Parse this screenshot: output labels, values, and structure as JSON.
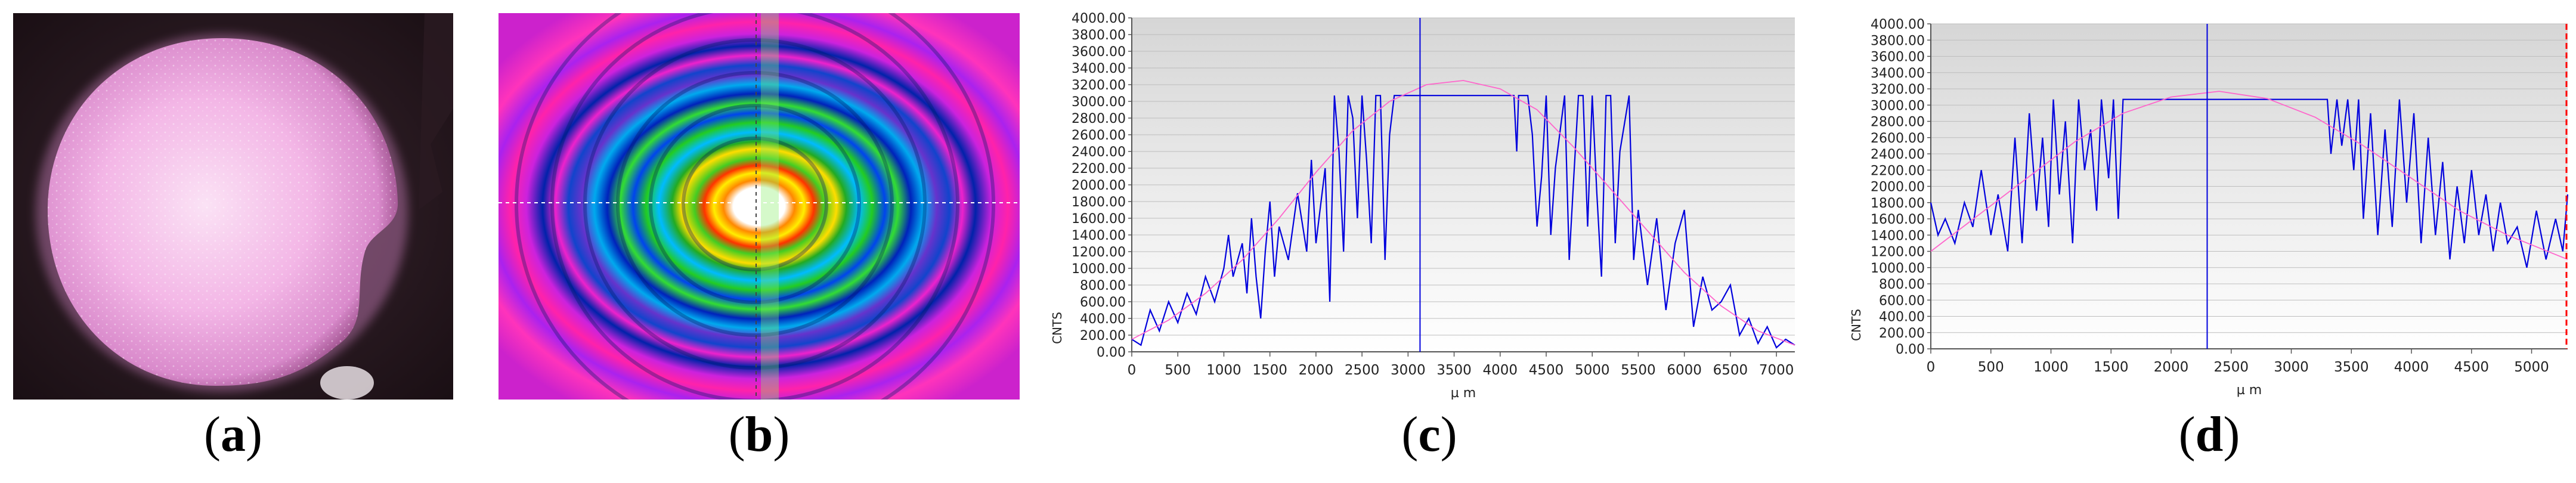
{
  "panels": {
    "a": {
      "label": "a"
    },
    "b": {
      "label": "b"
    },
    "c": {
      "label": "c"
    },
    "d": {
      "label": "d"
    }
  },
  "colors": {
    "profile": "#0000dd",
    "fit": "#ff66cc",
    "plot_bg_top": "#d6d6d6",
    "plot_bg_bottom": "#ffffff",
    "sphere": "#f3b6e6",
    "cursor_red": "#ff0000"
  },
  "chart_data": [
    {
      "id": "c",
      "type": "line",
      "ylabel": "CNTS",
      "xlabel": "µ m",
      "xlim": [
        0,
        7200
      ],
      "ylim": [
        0,
        4000
      ],
      "x_ticks": [
        0,
        500,
        1000,
        1500,
        2000,
        2500,
        3000,
        3500,
        4000,
        4500,
        5000,
        5500,
        6000,
        6500,
        7000
      ],
      "x_tick_labels": [
        "0",
        "500",
        "1000",
        "1500",
        "2000",
        "2500",
        "3000",
        "3500",
        "4000",
        "4500",
        "5000",
        "5500",
        "6000",
        "6500",
        "7000"
      ],
      "y_ticks": [
        0,
        200,
        400,
        600,
        800,
        1000,
        1200,
        1400,
        1600,
        1800,
        2000,
        2200,
        2400,
        2600,
        2800,
        3000,
        3200,
        3400,
        3600,
        3800,
        4000
      ],
      "y_tick_labels": [
        "0.00",
        "200.00",
        "400.00",
        "600.00",
        "800.00",
        "1000.00",
        "1200.00",
        "1400.00",
        "1600.00",
        "1800.00",
        "2000.00",
        "2200.00",
        "2400.00",
        "2600.00",
        "2800.00",
        "3000.00",
        "3200.00",
        "3400.00",
        "3600.00",
        "3800.00",
        "4000.00"
      ],
      "cursor_x": 3130,
      "saturation": 3070,
      "series": [
        {
          "values": [
            [
              0,
              150
            ],
            [
              100,
              80
            ],
            [
              200,
              500
            ],
            [
              300,
              250
            ],
            [
              400,
              600
            ],
            [
              500,
              350
            ],
            [
              600,
              700
            ],
            [
              700,
              450
            ],
            [
              800,
              900
            ],
            [
              900,
              600
            ],
            [
              1000,
              1000
            ],
            [
              1050,
              1400
            ],
            [
              1100,
              900
            ],
            [
              1200,
              1300
            ],
            [
              1250,
              700
            ],
            [
              1300,
              1600
            ],
            [
              1350,
              900
            ],
            [
              1400,
              400
            ],
            [
              1450,
              1200
            ],
            [
              1500,
              1800
            ],
            [
              1550,
              900
            ],
            [
              1600,
              1500
            ],
            [
              1700,
              1100
            ],
            [
              1800,
              1900
            ],
            [
              1900,
              1200
            ],
            [
              1950,
              2300
            ],
            [
              2000,
              1300
            ],
            [
              2100,
              2200
            ],
            [
              2150,
              600
            ],
            [
              2200,
              3070
            ],
            [
              2250,
              2400
            ],
            [
              2300,
              1200
            ],
            [
              2350,
              3070
            ],
            [
              2400,
              2800
            ],
            [
              2450,
              1600
            ],
            [
              2500,
              3070
            ],
            [
              2550,
              2300
            ],
            [
              2600,
              1300
            ],
            [
              2650,
              3070
            ],
            [
              2700,
              3070
            ],
            [
              2750,
              1100
            ],
            [
              2800,
              2600
            ],
            [
              2850,
              3070
            ],
            [
              2900,
              3070
            ],
            [
              2950,
              3070
            ],
            [
              3000,
              3070
            ],
            [
              3100,
              3070
            ],
            [
              3500,
              3070
            ],
            [
              4000,
              3070
            ],
            [
              4150,
              3070
            ],
            [
              4180,
              2400
            ],
            [
              4200,
              3070
            ],
            [
              4300,
              3070
            ],
            [
              4350,
              2600
            ],
            [
              4400,
              1500
            ],
            [
              4450,
              2100
            ],
            [
              4500,
              3070
            ],
            [
              4550,
              1400
            ],
            [
              4600,
              2200
            ],
            [
              4700,
              3070
            ],
            [
              4750,
              1100
            ],
            [
              4800,
              2100
            ],
            [
              4850,
              3070
            ],
            [
              4900,
              3070
            ],
            [
              4950,
              1500
            ],
            [
              5000,
              3070
            ],
            [
              5050,
              1900
            ],
            [
              5100,
              900
            ],
            [
              5150,
              3070
            ],
            [
              5200,
              3070
            ],
            [
              5250,
              1300
            ],
            [
              5300,
              2400
            ],
            [
              5400,
              3070
            ],
            [
              5450,
              1100
            ],
            [
              5500,
              1700
            ],
            [
              5600,
              800
            ],
            [
              5700,
              1600
            ],
            [
              5800,
              500
            ],
            [
              5900,
              1300
            ],
            [
              6000,
              1700
            ],
            [
              6100,
              300
            ],
            [
              6200,
              900
            ],
            [
              6300,
              500
            ],
            [
              6400,
              600
            ],
            [
              6500,
              800
            ],
            [
              6600,
              200
            ],
            [
              6700,
              400
            ],
            [
              6800,
              100
            ],
            [
              6900,
              300
            ],
            [
              7000,
              50
            ],
            [
              7100,
              150
            ],
            [
              7200,
              80
            ]
          ]
        },
        {
          "values": [
            [
              0,
              150
            ],
            [
              400,
              380
            ],
            [
              800,
              700
            ],
            [
              1200,
              1100
            ],
            [
              1600,
              1600
            ],
            [
              2000,
              2150
            ],
            [
              2400,
              2650
            ],
            [
              2800,
              3000
            ],
            [
              3200,
              3200
            ],
            [
              3600,
              3250
            ],
            [
              4000,
              3150
            ],
            [
              4400,
              2900
            ],
            [
              4800,
              2450
            ],
            [
              5200,
              1950
            ],
            [
              5600,
              1450
            ],
            [
              6000,
              950
            ],
            [
              6400,
              550
            ],
            [
              6800,
              250
            ],
            [
              7200,
              80
            ]
          ]
        }
      ]
    },
    {
      "id": "d",
      "type": "line",
      "ylabel": "CNTS",
      "xlabel": "µ m",
      "xlim": [
        0,
        5300
      ],
      "ylim": [
        0,
        4000
      ],
      "x_ticks": [
        0,
        500,
        1000,
        1500,
        2000,
        2500,
        3000,
        3500,
        4000,
        4500,
        5000
      ],
      "x_tick_labels": [
        "0",
        "500",
        "1000",
        "1500",
        "2000",
        "2500",
        "3000",
        "3500",
        "4000",
        "4500",
        "5000"
      ],
      "y_ticks": [
        0,
        200,
        400,
        600,
        800,
        1000,
        1200,
        1400,
        1600,
        1800,
        2000,
        2200,
        2400,
        2600,
        2800,
        3000,
        3200,
        3400,
        3600,
        3800,
        4000
      ],
      "y_tick_labels": [
        "0.00",
        "200.00",
        "400.00",
        "600.00",
        "800.00",
        "1000.00",
        "1200.00",
        "1400.00",
        "1600.00",
        "1800.00",
        "2000.00",
        "2200.00",
        "2400.00",
        "2600.00",
        "2800.00",
        "3000.00",
        "3200.00",
        "3400.00",
        "3600.00",
        "3800.00",
        "4000.00"
      ],
      "cursor_x": 2300,
      "saturation": 3070,
      "series": [
        {
          "values": [
            [
              0,
              1800
            ],
            [
              60,
              1400
            ],
            [
              120,
              1600
            ],
            [
              200,
              1300
            ],
            [
              280,
              1800
            ],
            [
              350,
              1500
            ],
            [
              420,
              2200
            ],
            [
              500,
              1400
            ],
            [
              560,
              1900
            ],
            [
              640,
              1200
            ],
            [
              700,
              2600
            ],
            [
              760,
              1300
            ],
            [
              820,
              2900
            ],
            [
              880,
              1700
            ],
            [
              930,
              2600
            ],
            [
              980,
              1500
            ],
            [
              1020,
              3070
            ],
            [
              1070,
              1900
            ],
            [
              1120,
              2800
            ],
            [
              1180,
              1300
            ],
            [
              1230,
              3070
            ],
            [
              1280,
              2200
            ],
            [
              1330,
              2700
            ],
            [
              1380,
              1700
            ],
            [
              1420,
              3070
            ],
            [
              1480,
              2100
            ],
            [
              1520,
              3070
            ],
            [
              1560,
              1600
            ],
            [
              1600,
              3070
            ],
            [
              2000,
              3070
            ],
            [
              2500,
              3070
            ],
            [
              3000,
              3070
            ],
            [
              3300,
              3070
            ],
            [
              3330,
              2400
            ],
            [
              3380,
              3070
            ],
            [
              3420,
              2500
            ],
            [
              3470,
              3070
            ],
            [
              3520,
              2200
            ],
            [
              3560,
              3070
            ],
            [
              3600,
              1600
            ],
            [
              3660,
              2900
            ],
            [
              3720,
              1400
            ],
            [
              3780,
              2700
            ],
            [
              3840,
              1500
            ],
            [
              3900,
              3070
            ],
            [
              3960,
              1800
            ],
            [
              4020,
              2900
            ],
            [
              4080,
              1300
            ],
            [
              4140,
              2600
            ],
            [
              4200,
              1400
            ],
            [
              4260,
              2300
            ],
            [
              4320,
              1100
            ],
            [
              4380,
              2000
            ],
            [
              4440,
              1300
            ],
            [
              4500,
              2200
            ],
            [
              4560,
              1400
            ],
            [
              4620,
              1900
            ],
            [
              4680,
              1200
            ],
            [
              4740,
              1800
            ],
            [
              4800,
              1300
            ],
            [
              4880,
              1500
            ],
            [
              4960,
              1000
            ],
            [
              5040,
              1700
            ],
            [
              5120,
              1100
            ],
            [
              5200,
              1600
            ],
            [
              5260,
              1200
            ],
            [
              5300,
              1900
            ]
          ]
        },
        {
          "values": [
            [
              0,
              1200
            ],
            [
              400,
              1650
            ],
            [
              800,
              2100
            ],
            [
              1200,
              2550
            ],
            [
              1600,
              2900
            ],
            [
              2000,
              3100
            ],
            [
              2400,
              3170
            ],
            [
              2800,
              3080
            ],
            [
              3200,
              2850
            ],
            [
              3600,
              2500
            ],
            [
              4000,
              2100
            ],
            [
              4400,
              1700
            ],
            [
              4800,
              1400
            ],
            [
              5300,
              1100
            ]
          ]
        }
      ]
    }
  ]
}
